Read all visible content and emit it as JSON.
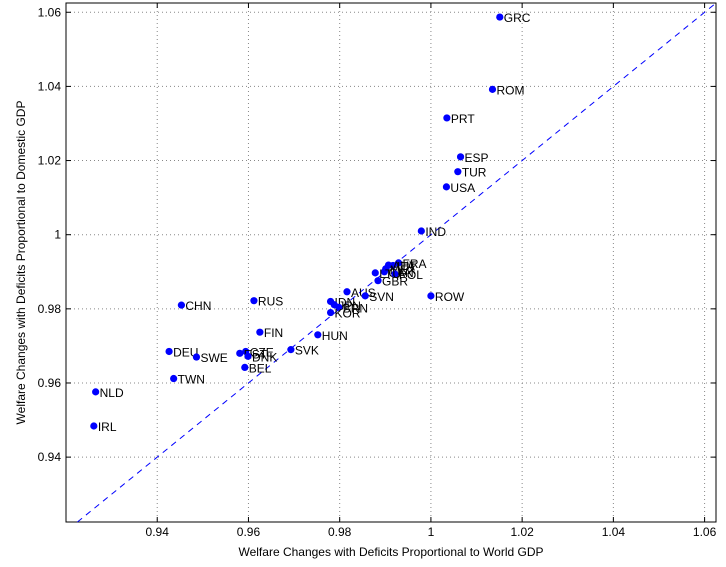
{
  "chart_data": {
    "type": "scatter",
    "title": "",
    "xlabel": "Welfare Changes with Deficits Proportional to World GDP",
    "ylabel": "Welfare Changes with Deficits Proportional to Domestic GDP",
    "xlim": [
      0.92,
      1.0625
    ],
    "ylim": [
      0.9225,
      1.0625
    ],
    "xticks": [
      0.94,
      0.96,
      0.98,
      1,
      1.02,
      1.04,
      1.06
    ],
    "yticks": [
      0.94,
      0.96,
      0.98,
      1,
      1.02,
      1.04,
      1.06
    ],
    "xtick_labels": [
      "0.94",
      "0.96",
      "0.98",
      "1",
      "1.02",
      "1.04",
      "1.06"
    ],
    "ytick_labels": [
      "0.94",
      "0.96",
      "0.98",
      "1",
      "1.02",
      "1.04",
      "1.06"
    ],
    "grid": true,
    "reference_line": "45-degree dashed line",
    "colors": {
      "points": "#0000ff",
      "reference_line": "#0000ff",
      "grid": "#888888",
      "axes": "#000000"
    },
    "points": [
      {
        "label": "GRC",
        "x": 1.0151,
        "y": 1.0587
      },
      {
        "label": "ROM",
        "x": 1.0135,
        "y": 1.0392
      },
      {
        "label": "PRT",
        "x": 1.0035,
        "y": 1.0315
      },
      {
        "label": "ESP",
        "x": 1.0065,
        "y": 1.021
      },
      {
        "label": "TUR",
        "x": 1.0059,
        "y": 1.017
      },
      {
        "label": "USA",
        "x": 1.0034,
        "y": 1.0129
      },
      {
        "label": "IND",
        "x": 0.9979,
        "y": 1.001
      },
      {
        "label": "FRA",
        "x": 0.9929,
        "y": 0.9924
      },
      {
        "label": "ITA",
        "x": 0.9917,
        "y": 0.9917
      },
      {
        "label": "AUT",
        "x": 0.9907,
        "y": 0.9918
      },
      {
        "label": "MEX",
        "x": 0.9901,
        "y": 0.9908
      },
      {
        "label": "CAN",
        "x": 0.9898,
        "y": 0.99
      },
      {
        "label": "POL",
        "x": 0.9921,
        "y": 0.9894
      },
      {
        "label": "LTU",
        "x": 0.9878,
        "y": 0.9897
      },
      {
        "label": "GBR",
        "x": 0.9884,
        "y": 0.9876
      },
      {
        "label": "ROW",
        "x": 1.0,
        "y": 0.9835
      },
      {
        "label": "AUS",
        "x": 0.9816,
        "y": 0.9846
      },
      {
        "label": "SVN",
        "x": 0.9856,
        "y": 0.9835
      },
      {
        "label": "IDN",
        "x": 0.978,
        "y": 0.982
      },
      {
        "label": "JPN",
        "x": 0.9788,
        "y": 0.9811
      },
      {
        "label": "BRN",
        "x": 0.9798,
        "y": 0.9804
      },
      {
        "label": "KOR",
        "x": 0.978,
        "y": 0.979
      },
      {
        "label": "RUS",
        "x": 0.9612,
        "y": 0.9822
      },
      {
        "label": "CHN",
        "x": 0.9453,
        "y": 0.981
      },
      {
        "label": "FIN",
        "x": 0.9625,
        "y": 0.9737
      },
      {
        "label": "HUN",
        "x": 0.9752,
        "y": 0.973
      },
      {
        "label": "SVK",
        "x": 0.9693,
        "y": 0.969
      },
      {
        "label": "CZE",
        "x": 0.9594,
        "y": 0.9685
      },
      {
        "label": "EST",
        "x": 0.9581,
        "y": 0.968
      },
      {
        "label": "DNK",
        "x": 0.9599,
        "y": 0.9672
      },
      {
        "label": "BEL",
        "x": 0.9592,
        "y": 0.9642
      },
      {
        "label": "DEU",
        "x": 0.9426,
        "y": 0.9685
      },
      {
        "label": "SWE",
        "x": 0.9486,
        "y": 0.967
      },
      {
        "label": "TWN",
        "x": 0.9436,
        "y": 0.9612
      },
      {
        "label": "NLD",
        "x": 0.9265,
        "y": 0.9576
      },
      {
        "label": "IRL",
        "x": 0.9261,
        "y": 0.9484
      }
    ]
  }
}
